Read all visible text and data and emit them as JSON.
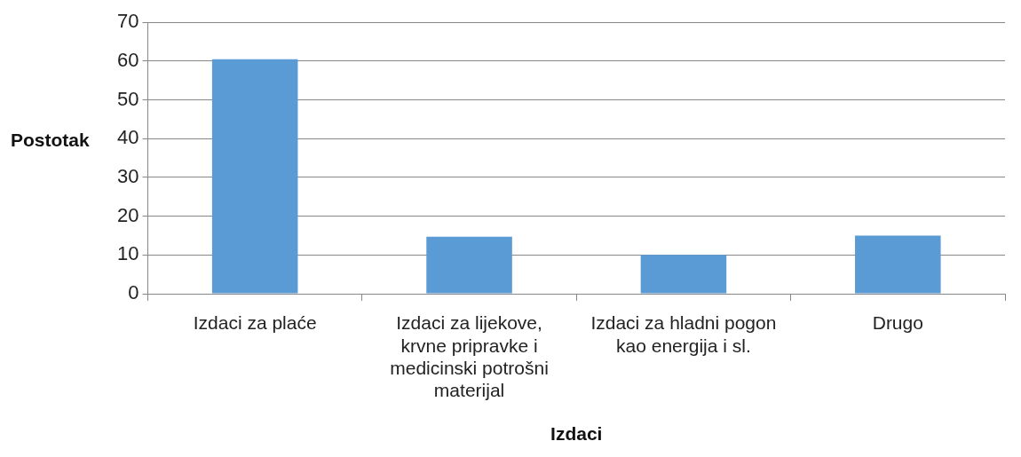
{
  "chart_data": {
    "type": "bar",
    "categories": [
      "Izdaci za plaće",
      "Izdaci za lijekove, krvne pripravke i medicinski potrošni materijal",
      "Izdaci za hladni pogon kao energija i sl.",
      "Drugo"
    ],
    "values": [
      60.5,
      14.7,
      10,
      15
    ],
    "color": "#5b9bd5",
    "xlabel": "Izdaci",
    "ylabel": "Postotak",
    "ylim": [
      0,
      70
    ],
    "yticks": [
      0,
      10,
      20,
      30,
      40,
      50,
      60,
      70
    ],
    "grid": "y",
    "legend": false
  }
}
